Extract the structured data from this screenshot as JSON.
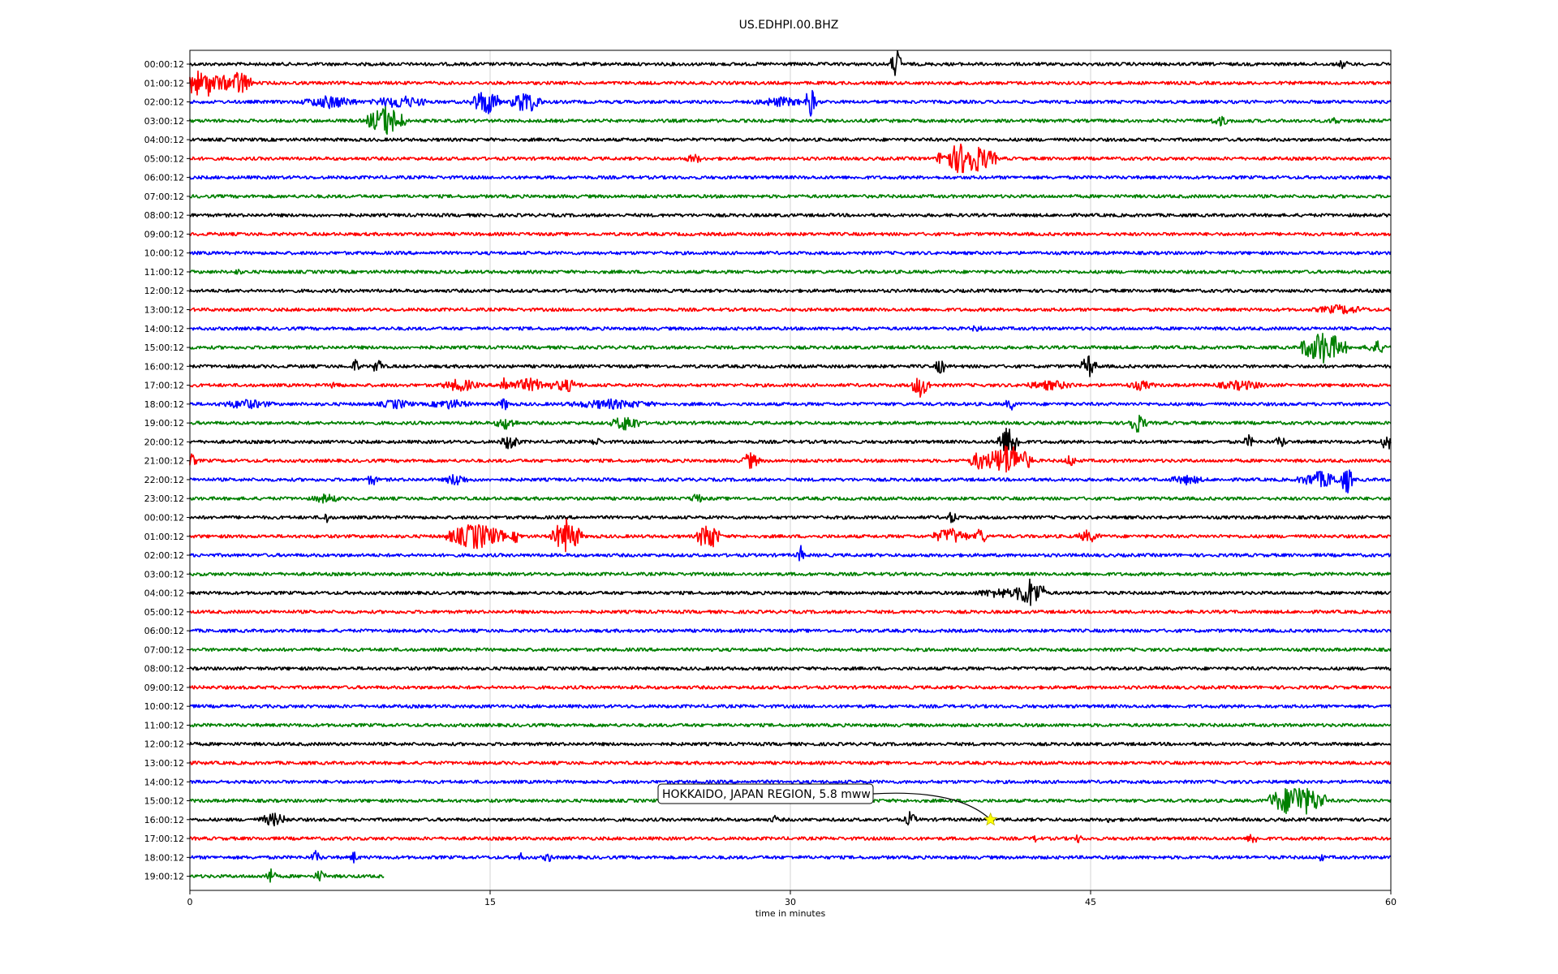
{
  "chart_data": {
    "type": "line",
    "title": "US.EDHPI.00.BHZ",
    "xlabel": "time in minutes",
    "ylabel": "",
    "xlim": [
      0,
      60
    ],
    "x_ticks": [
      0,
      15,
      30,
      45,
      60
    ],
    "x_tick_labels": [
      "0",
      "15",
      "30",
      "45",
      "60"
    ],
    "grid": "vertical lines at major x ticks",
    "row_interval_minutes": 60,
    "colors_cycle": [
      "#000000",
      "#ff0000",
      "#0000ff",
      "#008000"
    ],
    "rows": [
      {
        "label": "00:00:12",
        "color": "#000000",
        "end_minute": 60,
        "events": [
          {
            "minute": 35.3,
            "amplitude": 0.9,
            "duration": 0.3
          },
          {
            "minute": 57.6,
            "amplitude": 0.3,
            "duration": 0.3
          }
        ]
      },
      {
        "label": "01:00:12",
        "color": "#ff0000",
        "end_minute": 60,
        "events": [
          {
            "minute": 0.3,
            "amplitude": 0.7,
            "duration": 2.5
          },
          {
            "minute": 0.9,
            "amplitude": 0.9,
            "duration": 0.2
          },
          {
            "minute": 2.5,
            "amplitude": 0.8,
            "duration": 0.6
          }
        ]
      },
      {
        "label": "02:00:12",
        "color": "#0000ff",
        "end_minute": 60,
        "events": [
          {
            "minute": 7.0,
            "amplitude": 0.4,
            "duration": 1.5
          },
          {
            "minute": 10.5,
            "amplitude": 0.4,
            "duration": 1.5
          },
          {
            "minute": 14.8,
            "amplitude": 0.8,
            "duration": 0.8
          },
          {
            "minute": 16.8,
            "amplitude": 0.7,
            "duration": 0.8
          },
          {
            "minute": 29.5,
            "amplitude": 0.3,
            "duration": 1.5
          },
          {
            "minute": 31.0,
            "amplitude": 0.9,
            "duration": 0.3
          }
        ]
      },
      {
        "label": "03:00:12",
        "color": "#008000",
        "end_minute": 60,
        "events": [
          {
            "minute": 9.8,
            "amplitude": 0.9,
            "duration": 1.0
          },
          {
            "minute": 51.5,
            "amplitude": 0.3,
            "duration": 0.6
          },
          {
            "minute": 57.2,
            "amplitude": 0.3,
            "duration": 0.3
          }
        ]
      },
      {
        "label": "04:00:12",
        "color": "#000000",
        "end_minute": 60,
        "events": []
      },
      {
        "label": "05:00:12",
        "color": "#ff0000",
        "end_minute": 60,
        "events": [
          {
            "minute": 25.2,
            "amplitude": 0.3,
            "duration": 0.5
          },
          {
            "minute": 38.8,
            "amplitude": 1.0,
            "duration": 1.5
          }
        ]
      },
      {
        "label": "06:00:12",
        "color": "#0000ff",
        "end_minute": 60,
        "events": []
      },
      {
        "label": "07:00:12",
        "color": "#008000",
        "end_minute": 60,
        "events": []
      },
      {
        "label": "08:00:12",
        "color": "#000000",
        "end_minute": 60,
        "events": []
      },
      {
        "label": "09:00:12",
        "color": "#ff0000",
        "end_minute": 60,
        "events": []
      },
      {
        "label": "10:00:12",
        "color": "#0000ff",
        "end_minute": 60,
        "events": []
      },
      {
        "label": "11:00:12",
        "color": "#008000",
        "end_minute": 60,
        "events": [
          {
            "minute": 2.4,
            "amplitude": 0.2,
            "duration": 0.3
          }
        ]
      },
      {
        "label": "12:00:12",
        "color": "#000000",
        "end_minute": 60,
        "events": []
      },
      {
        "label": "13:00:12",
        "color": "#ff0000",
        "end_minute": 60,
        "events": [
          {
            "minute": 57.5,
            "amplitude": 0.3,
            "duration": 1.5
          }
        ]
      },
      {
        "label": "14:00:12",
        "color": "#0000ff",
        "end_minute": 60,
        "events": [
          {
            "minute": 39.3,
            "amplitude": 0.2,
            "duration": 0.5
          }
        ]
      },
      {
        "label": "15:00:12",
        "color": "#008000",
        "end_minute": 60,
        "events": [
          {
            "minute": 56.6,
            "amplitude": 1.0,
            "duration": 1.2
          },
          {
            "minute": 59.3,
            "amplitude": 0.4,
            "duration": 0.6
          }
        ]
      },
      {
        "label": "16:00:12",
        "color": "#000000",
        "end_minute": 60,
        "events": [
          {
            "minute": 8.3,
            "amplitude": 0.5,
            "duration": 0.2
          },
          {
            "minute": 9.4,
            "amplitude": 0.5,
            "duration": 0.3
          },
          {
            "minute": 37.5,
            "amplitude": 0.5,
            "duration": 0.3
          },
          {
            "minute": 44.9,
            "amplitude": 0.7,
            "duration": 0.4
          }
        ]
      },
      {
        "label": "17:00:12",
        "color": "#ff0000",
        "end_minute": 60,
        "events": [
          {
            "minute": 7.3,
            "amplitude": 0.3,
            "duration": 0.3
          },
          {
            "minute": 13.5,
            "amplitude": 0.4,
            "duration": 1.0
          },
          {
            "minute": 15.7,
            "amplitude": 0.6,
            "duration": 0.3
          },
          {
            "minute": 17.0,
            "amplitude": 0.4,
            "duration": 1.5
          },
          {
            "minute": 18.8,
            "amplitude": 0.4,
            "duration": 0.8
          },
          {
            "minute": 36.5,
            "amplitude": 0.7,
            "duration": 0.5
          },
          {
            "minute": 43.0,
            "amplitude": 0.3,
            "duration": 1.5
          },
          {
            "minute": 47.5,
            "amplitude": 0.3,
            "duration": 0.8
          },
          {
            "minute": 52.5,
            "amplitude": 0.3,
            "duration": 1.5
          }
        ]
      },
      {
        "label": "18:00:12",
        "color": "#0000ff",
        "end_minute": 60,
        "events": [
          {
            "minute": 2.8,
            "amplitude": 0.3,
            "duration": 1.5
          },
          {
            "minute": 10.3,
            "amplitude": 0.3,
            "duration": 1.0
          },
          {
            "minute": 13.0,
            "amplitude": 0.3,
            "duration": 1.2
          },
          {
            "minute": 15.7,
            "amplitude": 0.4,
            "duration": 0.3
          },
          {
            "minute": 21.0,
            "amplitude": 0.3,
            "duration": 2.5
          },
          {
            "minute": 41.0,
            "amplitude": 0.4,
            "duration": 0.3
          }
        ]
      },
      {
        "label": "19:00:12",
        "color": "#008000",
        "end_minute": 60,
        "events": [
          {
            "minute": 15.8,
            "amplitude": 0.4,
            "duration": 0.6
          },
          {
            "minute": 21.8,
            "amplitude": 0.5,
            "duration": 0.8
          },
          {
            "minute": 47.3,
            "amplitude": 0.6,
            "duration": 0.5
          }
        ]
      },
      {
        "label": "20:00:12",
        "color": "#000000",
        "end_minute": 60,
        "events": [
          {
            "minute": 16.0,
            "amplitude": 0.5,
            "duration": 0.5
          },
          {
            "minute": 20.3,
            "amplitude": 0.3,
            "duration": 0.3
          },
          {
            "minute": 40.9,
            "amplitude": 1.0,
            "duration": 0.6
          },
          {
            "minute": 52.9,
            "amplitude": 0.4,
            "duration": 0.3
          },
          {
            "minute": 54.5,
            "amplitude": 0.4,
            "duration": 0.3
          },
          {
            "minute": 59.8,
            "amplitude": 0.6,
            "duration": 0.3
          }
        ]
      },
      {
        "label": "21:00:12",
        "color": "#ff0000",
        "end_minute": 60,
        "events": [
          {
            "minute": 0.1,
            "amplitude": 0.4,
            "duration": 0.3
          },
          {
            "minute": 28.0,
            "amplitude": 0.5,
            "duration": 0.5
          },
          {
            "minute": 39.5,
            "amplitude": 0.6,
            "duration": 0.6
          },
          {
            "minute": 40.9,
            "amplitude": 1.0,
            "duration": 1.2
          },
          {
            "minute": 44.0,
            "amplitude": 0.4,
            "duration": 0.3
          }
        ]
      },
      {
        "label": "22:00:12",
        "color": "#0000ff",
        "end_minute": 60,
        "events": [
          {
            "minute": 9.1,
            "amplitude": 0.4,
            "duration": 0.3
          },
          {
            "minute": 13.3,
            "amplitude": 0.4,
            "duration": 0.6
          },
          {
            "minute": 49.8,
            "amplitude": 0.3,
            "duration": 1.0
          },
          {
            "minute": 56.5,
            "amplitude": 0.5,
            "duration": 1.2
          },
          {
            "minute": 57.8,
            "amplitude": 0.9,
            "duration": 0.3
          }
        ]
      },
      {
        "label": "23:00:12",
        "color": "#008000",
        "end_minute": 60,
        "events": [
          {
            "minute": 6.8,
            "amplitude": 0.3,
            "duration": 0.8
          },
          {
            "minute": 25.3,
            "amplitude": 0.4,
            "duration": 0.3
          }
        ]
      },
      {
        "label": "00:00:12",
        "color": "#000000",
        "end_minute": 60,
        "events": [
          {
            "minute": 6.8,
            "amplitude": 0.4,
            "duration": 0.2
          },
          {
            "minute": 38.1,
            "amplitude": 0.4,
            "duration": 0.3
          }
        ]
      },
      {
        "label": "01:00:12",
        "color": "#ff0000",
        "end_minute": 60,
        "events": [
          {
            "minute": 14.3,
            "amplitude": 0.8,
            "duration": 1.5
          },
          {
            "minute": 18.8,
            "amplitude": 1.0,
            "duration": 0.8
          },
          {
            "minute": 16.3,
            "amplitude": 0.4,
            "duration": 0.3
          },
          {
            "minute": 25.9,
            "amplitude": 0.9,
            "duration": 0.6
          },
          {
            "minute": 38.0,
            "amplitude": 0.5,
            "duration": 1.0
          },
          {
            "minute": 39.5,
            "amplitude": 0.6,
            "duration": 0.3
          },
          {
            "minute": 44.9,
            "amplitude": 0.4,
            "duration": 0.6
          }
        ]
      },
      {
        "label": "02:00:12",
        "color": "#0000ff",
        "end_minute": 60,
        "events": [
          {
            "minute": 30.5,
            "amplitude": 0.6,
            "duration": 0.2
          }
        ]
      },
      {
        "label": "03:00:12",
        "color": "#008000",
        "end_minute": 60,
        "events": []
      },
      {
        "label": "04:00:12",
        "color": "#000000",
        "end_minute": 60,
        "events": [
          {
            "minute": 40.5,
            "amplitude": 0.3,
            "duration": 1.5
          },
          {
            "minute": 42.0,
            "amplitude": 0.9,
            "duration": 0.8
          }
        ]
      },
      {
        "label": "05:00:12",
        "color": "#ff0000",
        "end_minute": 60,
        "events": []
      },
      {
        "label": "06:00:12",
        "color": "#0000ff",
        "end_minute": 60,
        "events": []
      },
      {
        "label": "07:00:12",
        "color": "#008000",
        "end_minute": 60,
        "events": []
      },
      {
        "label": "08:00:12",
        "color": "#000000",
        "end_minute": 60,
        "events": []
      },
      {
        "label": "09:00:12",
        "color": "#ff0000",
        "end_minute": 60,
        "events": []
      },
      {
        "label": "10:00:12",
        "color": "#0000ff",
        "end_minute": 60,
        "events": []
      },
      {
        "label": "11:00:12",
        "color": "#008000",
        "end_minute": 60,
        "events": []
      },
      {
        "label": "12:00:12",
        "color": "#000000",
        "end_minute": 60,
        "events": []
      },
      {
        "label": "13:00:12",
        "color": "#ff0000",
        "end_minute": 60,
        "events": []
      },
      {
        "label": "14:00:12",
        "color": "#0000ff",
        "end_minute": 60,
        "events": []
      },
      {
        "label": "15:00:12",
        "color": "#008000",
        "end_minute": 60,
        "events": [
          {
            "minute": 55.3,
            "amplitude": 1.0,
            "duration": 1.5
          }
        ]
      },
      {
        "label": "16:00:12",
        "color": "#000000",
        "end_minute": 60,
        "events": [
          {
            "minute": 4.2,
            "amplitude": 0.4,
            "duration": 0.8
          },
          {
            "minute": 29.2,
            "amplitude": 0.3,
            "duration": 0.2
          },
          {
            "minute": 36.0,
            "amplitude": 0.5,
            "duration": 0.3
          },
          {
            "minute": 46.0,
            "amplitude": 0.3,
            "duration": 0.2
          }
        ]
      },
      {
        "label": "17:00:12",
        "color": "#ff0000",
        "end_minute": 60,
        "events": [
          {
            "minute": 42.3,
            "amplitude": 0.3,
            "duration": 0.2
          },
          {
            "minute": 44.4,
            "amplitude": 0.3,
            "duration": 0.2
          },
          {
            "minute": 53.1,
            "amplitude": 0.4,
            "duration": 0.3
          }
        ]
      },
      {
        "label": "18:00:12",
        "color": "#0000ff",
        "end_minute": 60,
        "events": [
          {
            "minute": 6.3,
            "amplitude": 0.4,
            "duration": 0.3
          },
          {
            "minute": 8.2,
            "amplitude": 0.4,
            "duration": 0.2
          },
          {
            "minute": 16.5,
            "amplitude": 0.3,
            "duration": 0.2
          },
          {
            "minute": 17.9,
            "amplitude": 0.3,
            "duration": 0.3
          },
          {
            "minute": 56.5,
            "amplitude": 0.3,
            "duration": 0.2
          }
        ]
      },
      {
        "label": "19:00:12",
        "color": "#008000",
        "end_minute": 9.7,
        "events": [
          {
            "minute": 4.0,
            "amplitude": 0.5,
            "duration": 0.3
          },
          {
            "minute": 6.5,
            "amplitude": 0.4,
            "duration": 0.3
          }
        ]
      }
    ],
    "annotation": {
      "text": "HOKKAIDO, JAPAN REGION, 5.8 mww",
      "row_index": 40,
      "minute": 40.0,
      "marker": "star",
      "marker_color": "#ffff00"
    }
  }
}
